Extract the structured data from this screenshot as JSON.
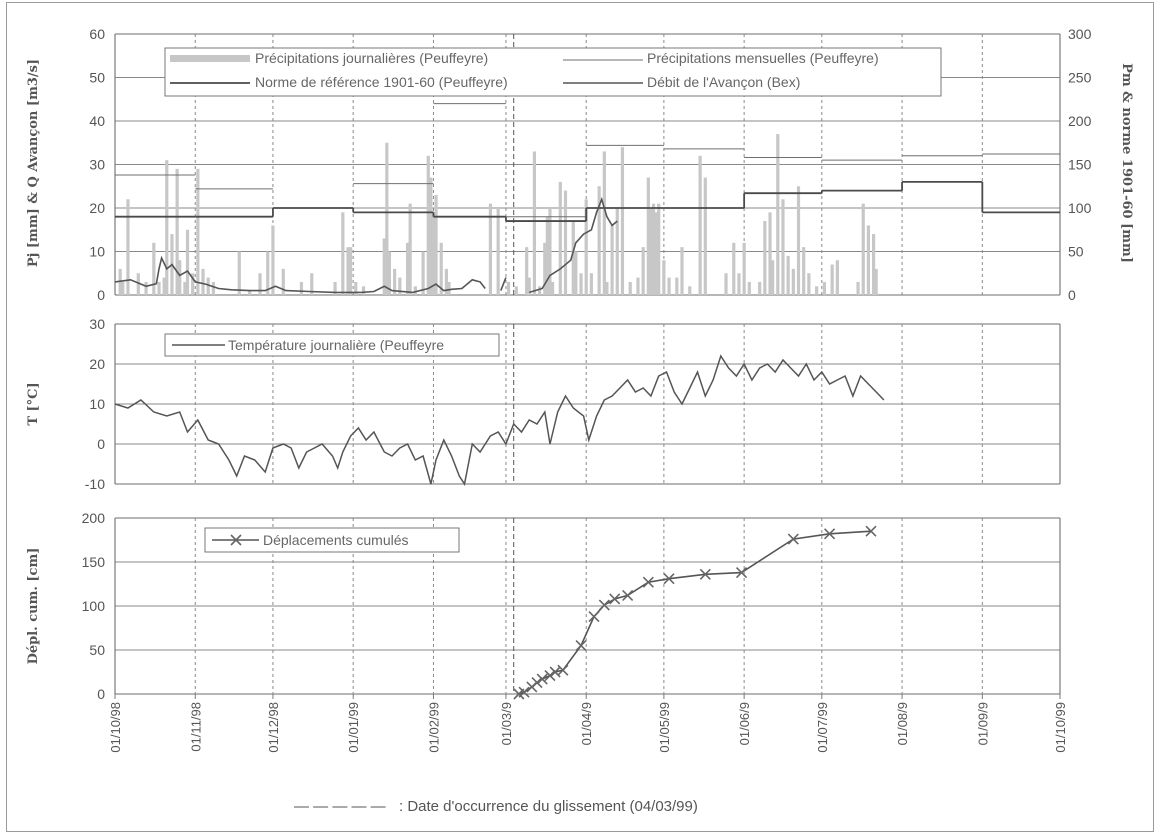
{
  "colors": {
    "gridline": "#8a8a8a",
    "axis": "#7a7a7a",
    "dash": "#8a8a8a",
    "daily_bar": "#c7c7c7",
    "line": "#555555",
    "monthly": "#6f6f6f",
    "marker": "#666666"
  },
  "footer": {
    "legend_symbol": "— — — — —",
    "text": ": Date d'occurrence du glissement (04/03/99)"
  },
  "chart_data": [
    {
      "id": "precip",
      "type": "bar",
      "ylabel_left": "Pj [mm] & Q Avançon [m3/s]",
      "ylabel_right": "Pm & norme 1901-60 [mm]",
      "ylim_left": [
        0,
        60
      ],
      "ylim_right": [
        0,
        300
      ],
      "yticks_left": [
        "0",
        "10",
        "20",
        "30",
        "40",
        "50",
        "60"
      ],
      "yticks_right": [
        "0",
        "50",
        "100",
        "150",
        "200",
        "250",
        "300"
      ],
      "legend": [
        "Précipitations journalières (Peuffeyre)",
        "Précipitations mensuelles (Peuffeyre)",
        "Norme de référence 1901-60 (Peuffeyre)",
        "Débit de l'Avançon (Bex)"
      ],
      "months": [
        "Oct 98",
        "Nov 98",
        "Dec 98",
        "Jan 99",
        "Feb 99",
        "Mar 99",
        "Apr 99",
        "May 99",
        "Jun 99",
        "Jul 99",
        "Aug 99",
        "Sep 99"
      ],
      "monthly_precip_mm": [
        138,
        122,
        0,
        128,
        220,
        90,
        172,
        168,
        158,
        155,
        160,
        162
      ],
      "norm_1901_60_mm": [
        90,
        90,
        100,
        95,
        90,
        85,
        100,
        100,
        117,
        120,
        130,
        95
      ],
      "daily_precip_mm": [
        [
          2,
          6
        ],
        [
          3,
          3
        ],
        [
          5,
          22
        ],
        [
          9,
          5
        ],
        [
          12,
          3
        ],
        [
          15,
          12
        ],
        [
          17,
          3
        ],
        [
          19,
          4
        ],
        [
          20,
          31
        ],
        [
          22,
          14
        ],
        [
          24,
          29
        ],
        [
          25,
          8
        ],
        [
          27,
          3
        ],
        [
          28,
          15
        ],
        [
          30,
          5
        ],
        [
          32,
          29
        ],
        [
          34,
          6
        ],
        [
          36,
          4
        ],
        [
          38,
          3
        ],
        [
          48,
          10
        ],
        [
          52,
          1
        ],
        [
          56,
          5
        ],
        [
          59,
          10
        ],
        [
          61,
          16
        ],
        [
          65,
          6
        ],
        [
          72,
          3
        ],
        [
          76,
          5
        ],
        [
          85,
          3
        ],
        [
          88,
          19
        ],
        [
          90,
          11
        ],
        [
          91,
          11
        ],
        [
          93,
          3
        ],
        [
          96,
          2
        ],
        [
          104,
          13
        ],
        [
          105,
          35
        ],
        [
          106,
          10
        ],
        [
          108,
          6
        ],
        [
          110,
          4
        ],
        [
          113,
          12
        ],
        [
          114,
          21
        ],
        [
          116,
          2
        ],
        [
          119,
          10
        ],
        [
          121,
          32
        ],
        [
          122,
          27
        ],
        [
          123,
          19
        ],
        [
          124,
          23
        ],
        [
          126,
          12
        ],
        [
          128,
          6
        ],
        [
          129,
          3
        ],
        [
          145,
          21
        ],
        [
          148,
          20
        ],
        [
          152,
          3
        ],
        [
          155,
          2
        ],
        [
          159,
          11
        ],
        [
          160,
          4
        ],
        [
          162,
          33
        ],
        [
          164,
          2
        ],
        [
          166,
          12
        ],
        [
          167,
          18
        ],
        [
          168,
          20
        ],
        [
          169,
          3
        ],
        [
          172,
          26
        ],
        [
          174,
          24
        ],
        [
          177,
          17
        ],
        [
          178,
          10
        ],
        [
          180,
          5
        ],
        [
          182,
          22
        ],
        [
          184,
          5
        ],
        [
          187,
          25
        ],
        [
          189,
          33
        ],
        [
          190,
          3
        ],
        [
          192,
          16
        ],
        [
          194,
          20
        ],
        [
          196,
          34
        ],
        [
          199,
          3
        ],
        [
          202,
          4
        ],
        [
          204,
          11
        ],
        [
          206,
          27
        ],
        [
          207,
          20
        ],
        [
          208,
          21
        ],
        [
          209,
          19
        ],
        [
          210,
          21
        ],
        [
          212,
          8
        ],
        [
          214,
          4
        ],
        [
          217,
          4
        ],
        [
          219,
          11
        ],
        [
          222,
          2
        ],
        [
          226,
          32
        ],
        [
          228,
          27
        ],
        [
          236,
          5
        ],
        [
          239,
          12
        ],
        [
          241,
          5
        ],
        [
          243,
          12
        ],
        [
          245,
          3
        ],
        [
          249,
          3
        ],
        [
          251,
          17
        ],
        [
          253,
          19
        ],
        [
          254,
          8
        ],
        [
          256,
          37
        ],
        [
          258,
          22
        ],
        [
          260,
          9
        ],
        [
          262,
          6
        ],
        [
          264,
          25
        ],
        [
          266,
          11
        ],
        [
          268,
          5
        ],
        [
          271,
          2
        ],
        [
          274,
          3
        ],
        [
          277,
          7
        ],
        [
          279,
          8
        ],
        [
          287,
          3
        ],
        [
          289,
          21
        ],
        [
          291,
          16
        ],
        [
          293,
          14
        ],
        [
          294,
          6
        ]
      ],
      "discharge_m3s": [
        [
          0,
          3
        ],
        [
          6,
          3.5
        ],
        [
          12,
          2
        ],
        [
          16,
          2.6
        ],
        [
          17,
          6
        ],
        [
          18,
          8.5
        ],
        [
          20,
          6
        ],
        [
          22,
          7
        ],
        [
          25,
          4.5
        ],
        [
          28,
          5.5
        ],
        [
          31,
          3
        ],
        [
          35,
          2.5
        ],
        [
          40,
          1.5
        ],
        [
          45,
          1.2
        ],
        [
          52,
          1
        ],
        [
          58,
          1
        ],
        [
          62,
          2
        ],
        [
          66,
          1
        ],
        [
          75,
          0.8
        ],
        [
          85,
          0.6
        ],
        [
          95,
          0.6
        ],
        [
          100,
          0.8
        ],
        [
          104,
          2
        ],
        [
          107,
          1
        ],
        [
          115,
          0.6
        ],
        [
          121,
          1.5
        ],
        [
          124,
          2.5
        ],
        [
          127,
          1
        ],
        [
          130,
          1.3
        ],
        [
          134,
          1.5
        ],
        [
          138,
          3.5
        ],
        [
          141,
          3
        ],
        [
          143,
          1.5
        ],
        [
          149,
          1
        ],
        [
          151,
          4
        ],
        [
          160,
          0.6
        ],
        [
          165,
          1.5
        ],
        [
          168,
          4.5
        ],
        [
          172,
          6
        ],
        [
          176,
          8
        ],
        [
          178,
          12
        ],
        [
          181,
          14
        ],
        [
          184,
          15
        ],
        [
          186,
          19
        ],
        [
          188,
          22
        ],
        [
          190,
          18
        ],
        [
          192,
          16
        ],
        [
          194,
          17
        ]
      ]
    },
    {
      "id": "temp",
      "type": "line",
      "ylabel": "T [°C]",
      "ylim": [
        -10,
        30
      ],
      "yticks": [
        "-10",
        "0",
        "10",
        "20",
        "30"
      ],
      "legend": [
        "Température journalière (Peuffeyre"
      ],
      "x_start": "1998-10-01",
      "series_points_day_value": [
        [
          0,
          10
        ],
        [
          5,
          9
        ],
        [
          10,
          11
        ],
        [
          15,
          8
        ],
        [
          20,
          7
        ],
        [
          25,
          8
        ],
        [
          28,
          3
        ],
        [
          32,
          6
        ],
        [
          36,
          1
        ],
        [
          40,
          0
        ],
        [
          44,
          -4
        ],
        [
          47,
          -8
        ],
        [
          50,
          -3
        ],
        [
          54,
          -4
        ],
        [
          58,
          -7
        ],
        [
          61,
          -1
        ],
        [
          65,
          0
        ],
        [
          68,
          -1
        ],
        [
          71,
          -6
        ],
        [
          74,
          -2
        ],
        [
          77,
          -1
        ],
        [
          80,
          0
        ],
        [
          84,
          -3
        ],
        [
          86,
          -6
        ],
        [
          88,
          -2
        ],
        [
          91,
          2
        ],
        [
          94,
          4
        ],
        [
          97,
          1
        ],
        [
          100,
          3
        ],
        [
          104,
          -2
        ],
        [
          107,
          -3
        ],
        [
          110,
          -1
        ],
        [
          113,
          0
        ],
        [
          116,
          -4
        ],
        [
          119,
          -3
        ],
        [
          122,
          -10
        ],
        [
          124,
          -4
        ],
        [
          127,
          1
        ],
        [
          130,
          -3
        ],
        [
          133,
          -8
        ],
        [
          135,
          -10
        ],
        [
          138,
          0
        ],
        [
          141,
          -2
        ],
        [
          145,
          2
        ],
        [
          148,
          3
        ],
        [
          151,
          0
        ],
        [
          154,
          5
        ],
        [
          157,
          3
        ],
        [
          160,
          6
        ],
        [
          163,
          5
        ],
        [
          166,
          8
        ],
        [
          168,
          0
        ],
        [
          171,
          8
        ],
        [
          174,
          12
        ],
        [
          177,
          9
        ],
        [
          181,
          7
        ],
        [
          183,
          1
        ],
        [
          186,
          7
        ],
        [
          189,
          11
        ],
        [
          192,
          12
        ],
        [
          195,
          14
        ],
        [
          198,
          16
        ],
        [
          201,
          13
        ],
        [
          204,
          14
        ],
        [
          207,
          12
        ],
        [
          210,
          17
        ],
        [
          213,
          18
        ],
        [
          216,
          13
        ],
        [
          219,
          10
        ],
        [
          222,
          14
        ],
        [
          225,
          18
        ],
        [
          228,
          12
        ],
        [
          231,
          16
        ],
        [
          234,
          22
        ],
        [
          237,
          19
        ],
        [
          240,
          17
        ],
        [
          243,
          20
        ],
        [
          246,
          16
        ],
        [
          249,
          19
        ],
        [
          252,
          20
        ],
        [
          255,
          18
        ],
        [
          258,
          21
        ],
        [
          261,
          19
        ],
        [
          264,
          17
        ],
        [
          267,
          20
        ],
        [
          270,
          16
        ],
        [
          273,
          18
        ],
        [
          276,
          15
        ],
        [
          279,
          16
        ],
        [
          282,
          17
        ],
        [
          285,
          12
        ],
        [
          288,
          17
        ],
        [
          291,
          15
        ],
        [
          294,
          13
        ],
        [
          297,
          11
        ]
      ]
    },
    {
      "id": "displ",
      "type": "line",
      "ylabel": "Dépl. cum. [cm]",
      "ylim": [
        0,
        200
      ],
      "yticks": [
        "0",
        "50",
        "100",
        "150",
        "200"
      ],
      "legend": [
        "Déplacements cumulés"
      ],
      "x_ticks": [
        "01/10/98",
        "01/11/98",
        "01/12/98",
        "01/01/99",
        "01/02/99",
        "01/03/9",
        "01/04/9",
        "01/05/99",
        "01/06/9",
        "01/07/99",
        "01/08/9",
        "01/09/9",
        "01/10/99"
      ],
      "points_day_cm": [
        [
          156,
          0
        ],
        [
          158,
          2
        ],
        [
          161,
          8
        ],
        [
          163,
          13
        ],
        [
          165,
          17
        ],
        [
          168,
          21
        ],
        [
          170,
          25
        ],
        [
          173,
          27
        ],
        [
          180,
          55
        ],
        [
          185,
          88
        ],
        [
          189,
          101
        ],
        [
          193,
          108
        ],
        [
          198,
          112
        ],
        [
          206,
          127
        ],
        [
          214,
          131
        ],
        [
          228,
          136
        ],
        [
          242,
          138
        ],
        [
          262,
          176
        ],
        [
          276,
          182
        ],
        [
          292,
          185
        ]
      ]
    }
  ]
}
